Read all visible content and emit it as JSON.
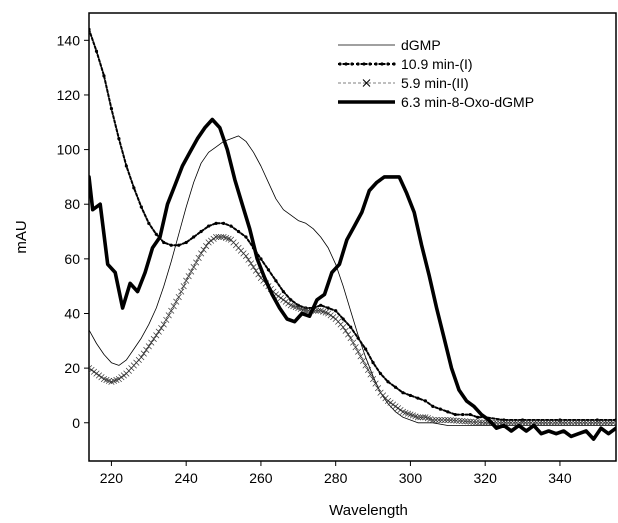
{
  "chart_data": {
    "type": "line",
    "xlabel": "Wavelength",
    "ylabel": "mAU",
    "xlim": [
      214,
      355
    ],
    "ylim": [
      -14,
      150
    ],
    "xticks": [
      220,
      240,
      260,
      280,
      300,
      320,
      340
    ],
    "yticks": [
      0,
      20,
      40,
      60,
      80,
      100,
      120,
      140
    ],
    "grid": false,
    "legend_position": "top-right",
    "series": [
      {
        "name": "dGMP",
        "style": "thin",
        "color": "#000000",
        "points": [
          [
            214,
            34
          ],
          [
            216,
            29
          ],
          [
            218,
            25
          ],
          [
            220,
            22
          ],
          [
            222,
            21
          ],
          [
            224,
            23
          ],
          [
            226,
            27
          ],
          [
            228,
            31
          ],
          [
            230,
            36
          ],
          [
            232,
            42
          ],
          [
            234,
            50
          ],
          [
            236,
            59
          ],
          [
            238,
            69
          ],
          [
            240,
            79
          ],
          [
            242,
            88
          ],
          [
            244,
            95
          ],
          [
            246,
            99
          ],
          [
            248,
            101
          ],
          [
            250,
            103
          ],
          [
            252,
            104
          ],
          [
            254,
            105
          ],
          [
            256,
            103
          ],
          [
            258,
            99
          ],
          [
            260,
            94
          ],
          [
            262,
            88
          ],
          [
            264,
            82
          ],
          [
            266,
            78
          ],
          [
            268,
            76
          ],
          [
            270,
            74
          ],
          [
            272,
            73
          ],
          [
            274,
            71
          ],
          [
            276,
            68
          ],
          [
            278,
            64
          ],
          [
            280,
            58
          ],
          [
            282,
            50
          ],
          [
            284,
            41
          ],
          [
            286,
            32
          ],
          [
            288,
            24
          ],
          [
            290,
            17
          ],
          [
            292,
            11
          ],
          [
            294,
            7
          ],
          [
            296,
            4
          ],
          [
            298,
            2
          ],
          [
            300,
            1
          ],
          [
            302,
            0
          ],
          [
            304,
            0
          ],
          [
            306,
            0
          ],
          [
            310,
            -1
          ],
          [
            320,
            -1
          ],
          [
            330,
            -1
          ],
          [
            340,
            -1
          ],
          [
            355,
            -1
          ]
        ]
      },
      {
        "name": "10.9 min-(I)",
        "style": "dotted",
        "color": "#000000",
        "points": [
          [
            214,
            144
          ],
          [
            216,
            136
          ],
          [
            218,
            127
          ],
          [
            220,
            115
          ],
          [
            222,
            104
          ],
          [
            224,
            94
          ],
          [
            226,
            86
          ],
          [
            228,
            79
          ],
          [
            230,
            73
          ],
          [
            232,
            69
          ],
          [
            234,
            66
          ],
          [
            236,
            65
          ],
          [
            238,
            65
          ],
          [
            240,
            66
          ],
          [
            242,
            68
          ],
          [
            244,
            70
          ],
          [
            246,
            72
          ],
          [
            248,
            73
          ],
          [
            250,
            73
          ],
          [
            252,
            72
          ],
          [
            254,
            70
          ],
          [
            256,
            68
          ],
          [
            258,
            64
          ],
          [
            260,
            60
          ],
          [
            262,
            56
          ],
          [
            264,
            52
          ],
          [
            266,
            48
          ],
          [
            268,
            45
          ],
          [
            270,
            43
          ],
          [
            272,
            42
          ],
          [
            274,
            42
          ],
          [
            276,
            43
          ],
          [
            278,
            42
          ],
          [
            280,
            41
          ],
          [
            282,
            38
          ],
          [
            284,
            35
          ],
          [
            286,
            31
          ],
          [
            288,
            27
          ],
          [
            290,
            22
          ],
          [
            292,
            18
          ],
          [
            294,
            15
          ],
          [
            296,
            13
          ],
          [
            298,
            11
          ],
          [
            300,
            10
          ],
          [
            302,
            9
          ],
          [
            304,
            8
          ],
          [
            306,
            6
          ],
          [
            308,
            5
          ],
          [
            310,
            4
          ],
          [
            312,
            3
          ],
          [
            314,
            3
          ],
          [
            316,
            3
          ],
          [
            318,
            2
          ],
          [
            320,
            2
          ],
          [
            325,
            1
          ],
          [
            330,
            1
          ],
          [
            340,
            1
          ],
          [
            350,
            1
          ],
          [
            355,
            1
          ]
        ]
      },
      {
        "name": "5.9 min-(II)",
        "style": "cross",
        "color": "#000000",
        "points": [
          [
            214,
            20
          ],
          [
            216,
            18
          ],
          [
            218,
            16
          ],
          [
            220,
            15
          ],
          [
            222,
            16
          ],
          [
            224,
            18
          ],
          [
            226,
            21
          ],
          [
            228,
            24
          ],
          [
            230,
            28
          ],
          [
            232,
            32
          ],
          [
            234,
            36
          ],
          [
            236,
            41
          ],
          [
            238,
            46
          ],
          [
            240,
            52
          ],
          [
            242,
            57
          ],
          [
            244,
            62
          ],
          [
            246,
            66
          ],
          [
            248,
            68
          ],
          [
            250,
            68
          ],
          [
            252,
            67
          ],
          [
            254,
            64
          ],
          [
            256,
            61
          ],
          [
            258,
            57
          ],
          [
            260,
            53
          ],
          [
            262,
            50
          ],
          [
            264,
            47
          ],
          [
            266,
            45
          ],
          [
            268,
            43
          ],
          [
            270,
            42
          ],
          [
            272,
            41
          ],
          [
            274,
            41
          ],
          [
            276,
            41
          ],
          [
            278,
            40
          ],
          [
            280,
            38
          ],
          [
            282,
            35
          ],
          [
            284,
            31
          ],
          [
            286,
            26
          ],
          [
            288,
            21
          ],
          [
            290,
            16
          ],
          [
            292,
            11
          ],
          [
            294,
            8
          ],
          [
            296,
            6
          ],
          [
            298,
            4
          ],
          [
            300,
            3
          ],
          [
            302,
            2
          ],
          [
            304,
            2
          ],
          [
            306,
            1
          ],
          [
            310,
            1
          ],
          [
            320,
            0
          ],
          [
            330,
            0
          ],
          [
            340,
            0
          ],
          [
            355,
            0
          ]
        ]
      },
      {
        "name": "6.3 min-8-Oxo-dGMP",
        "style": "thick",
        "color": "#000000",
        "points": [
          [
            214,
            90
          ],
          [
            215,
            78
          ],
          [
            217,
            80
          ],
          [
            219,
            58
          ],
          [
            221,
            55
          ],
          [
            223,
            42
          ],
          [
            225,
            51
          ],
          [
            227,
            48
          ],
          [
            229,
            55
          ],
          [
            231,
            64
          ],
          [
            233,
            68
          ],
          [
            235,
            80
          ],
          [
            237,
            87
          ],
          [
            239,
            94
          ],
          [
            241,
            99
          ],
          [
            243,
            104
          ],
          [
            245,
            108
          ],
          [
            247,
            111
          ],
          [
            249,
            108
          ],
          [
            251,
            100
          ],
          [
            253,
            89
          ],
          [
            255,
            80
          ],
          [
            257,
            71
          ],
          [
            259,
            60
          ],
          [
            261,
            53
          ],
          [
            263,
            47
          ],
          [
            265,
            42
          ],
          [
            267,
            38
          ],
          [
            269,
            37
          ],
          [
            271,
            40
          ],
          [
            273,
            39
          ],
          [
            275,
            45
          ],
          [
            277,
            47
          ],
          [
            279,
            55
          ],
          [
            281,
            58
          ],
          [
            283,
            67
          ],
          [
            285,
            72
          ],
          [
            287,
            77
          ],
          [
            289,
            85
          ],
          [
            291,
            88
          ],
          [
            293,
            90
          ],
          [
            295,
            90
          ],
          [
            297,
            90
          ],
          [
            299,
            84
          ],
          [
            301,
            77
          ],
          [
            303,
            65
          ],
          [
            305,
            54
          ],
          [
            307,
            42
          ],
          [
            309,
            31
          ],
          [
            311,
            20
          ],
          [
            313,
            12
          ],
          [
            315,
            8
          ],
          [
            317,
            6
          ],
          [
            319,
            3
          ],
          [
            321,
            1
          ],
          [
            323,
            -2
          ],
          [
            325,
            -1
          ],
          [
            327,
            -3
          ],
          [
            329,
            -1
          ],
          [
            331,
            -3
          ],
          [
            333,
            -1
          ],
          [
            335,
            -4
          ],
          [
            337,
            -3
          ],
          [
            339,
            -4
          ],
          [
            341,
            -3
          ],
          [
            343,
            -5
          ],
          [
            345,
            -4
          ],
          [
            347,
            -3
          ],
          [
            349,
            -6
          ],
          [
            351,
            -2
          ],
          [
            353,
            -4
          ],
          [
            355,
            -2
          ]
        ]
      }
    ]
  }
}
